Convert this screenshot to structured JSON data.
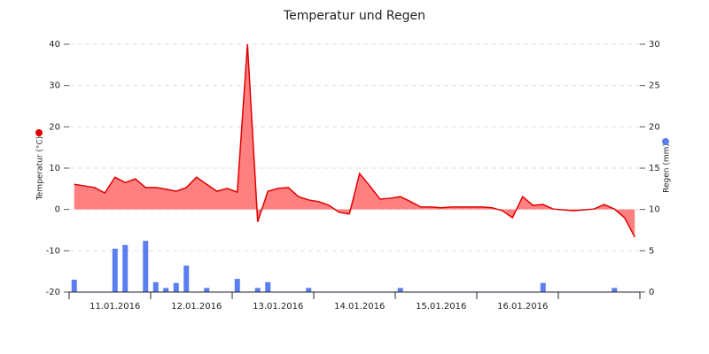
{
  "chart_data": {
    "type": "line",
    "title": "Temperatur und Regen",
    "categories": [
      null,
      null,
      null,
      null,
      "11.01.2016",
      null,
      null,
      null,
      null,
      null,
      null,
      null,
      "12.01.2016",
      null,
      null,
      null,
      null,
      null,
      null,
      null,
      "13.01.2016",
      null,
      null,
      null,
      null,
      null,
      null,
      null,
      "14.01.2016",
      null,
      null,
      null,
      null,
      null,
      null,
      null,
      "15.01.2016",
      null,
      null,
      null,
      null,
      null,
      null,
      null,
      "16.01.2016",
      null,
      null,
      null,
      null,
      null,
      null,
      null,
      null,
      null,
      null,
      null
    ],
    "series": [
      {
        "name": "Temperatur (°C)",
        "color": "#e00000",
        "fill": "#ff8080",
        "values": [
          6.1,
          5.7,
          5.3,
          4.0,
          7.8,
          6.5,
          7.4,
          5.3,
          5.3,
          4.9,
          4.4,
          5.3,
          7.8,
          6.1,
          4.4,
          5.1,
          4.2,
          40,
          -3,
          4.4,
          5.1,
          5.3,
          3.1,
          2.3,
          1.9,
          1.0,
          -0.7,
          -1.1,
          8.7,
          5.7,
          2.5,
          2.7,
          3.1,
          1.9,
          0.6,
          0.6,
          0.4,
          0.6,
          0.6,
          0.6,
          0.6,
          0.4,
          -0.3,
          -2,
          3.1,
          1.0,
          1.2,
          0.1,
          -0.1,
          -0.3,
          -0.1,
          0.1,
          1.2,
          0.1,
          -2,
          -6.7
        ]
      },
      {
        "name": "Regen (mm)",
        "color": "#5b7ff0",
        "type": "bar",
        "axis": "y2",
        "values": [
          1.5,
          0,
          0,
          0,
          5.25,
          5.7,
          0,
          6.2,
          1.2,
          0.5,
          1.1,
          3.2,
          0,
          0.5,
          0,
          0,
          1.6,
          0,
          0.5,
          1.2,
          0,
          0,
          0,
          0.5,
          0,
          0,
          0,
          0,
          0,
          0,
          0,
          0,
          0.5,
          0,
          0,
          0,
          0,
          0,
          0,
          0,
          0,
          0,
          0,
          0,
          0,
          0,
          1.1,
          0,
          0,
          0,
          0,
          0,
          0,
          0.5,
          0,
          0
        ]
      }
    ],
    "ylim": [
      -20,
      40
    ],
    "yticks": [
      -20,
      -10,
      0,
      10,
      20,
      30,
      40
    ],
    "y2lim": [
      0,
      30
    ],
    "y2ticks": [
      0,
      5,
      10,
      15,
      20,
      25,
      30
    ],
    "grid": true
  }
}
